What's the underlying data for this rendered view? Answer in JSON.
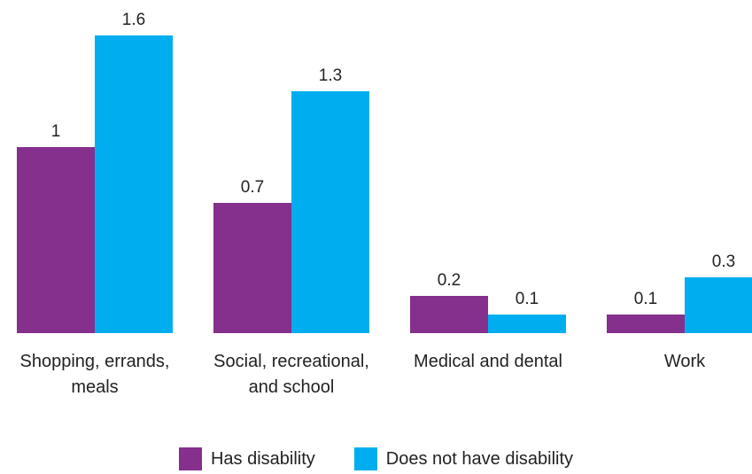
{
  "chart_data": {
    "type": "bar",
    "categories": [
      [
        "Shopping, errands,",
        "meals"
      ],
      [
        "Social, recreational,",
        "and school"
      ],
      [
        "Medical and dental"
      ],
      [
        "Work"
      ]
    ],
    "series": [
      {
        "name": "Has disability",
        "color": "#84308C",
        "values": [
          1,
          0.7,
          0.2,
          0.1
        ],
        "labels": [
          "1",
          "0.7",
          "0.2",
          "0.1"
        ]
      },
      {
        "name": "Does not have disability",
        "color": "#00AEEF",
        "values": [
          1.6,
          1.3,
          0.1,
          0.3
        ],
        "labels": [
          "1.6",
          "1.3",
          "0.1",
          "0.3"
        ]
      }
    ],
    "title": "",
    "xlabel": "",
    "ylabel": "",
    "ylim": [
      0,
      1.6
    ],
    "grid": false,
    "legend_position": "bottom-center"
  }
}
